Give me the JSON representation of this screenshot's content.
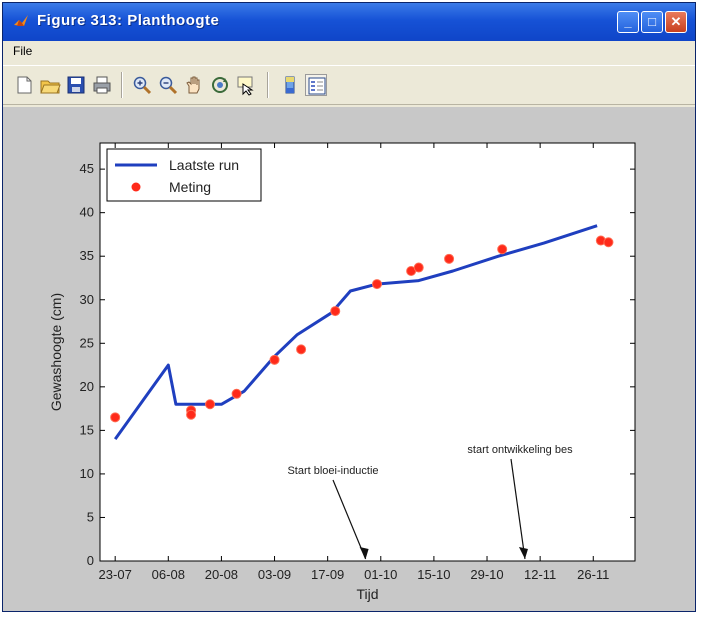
{
  "window": {
    "title": "Figure 313:  Planthoogte",
    "min_glyph": "_",
    "max_glyph": "□",
    "close_glyph": "✕"
  },
  "menu": {
    "file_label": "File"
  },
  "toolbar": {
    "icons": [
      "new-file-icon",
      "open-folder-icon",
      "save-icon",
      "print-icon",
      "zoom-in-icon",
      "zoom-out-icon",
      "pan-hand-icon",
      "rotate-3d-icon",
      "data-cursor-icon",
      "colorbar-icon",
      "legend-icon"
    ]
  },
  "colors": {
    "title_bar": "#1652d6",
    "figure_background": "#c8c8c8",
    "model_line": "#1f3fbf",
    "measurement_marker": "#ff2a1a"
  },
  "chart_data": {
    "type": "line",
    "title": "",
    "xlabel": "Tijd",
    "ylabel": "Gewashoogte (cm)",
    "x_tick_labels": [
      "23-07",
      "06-08",
      "20-08",
      "03-09",
      "17-09",
      "01-10",
      "15-10",
      "29-10",
      "12-11",
      "26-11"
    ],
    "x_unit": "day index (0 = 23-07)",
    "xlim": [
      -4,
      137
    ],
    "ylim": [
      0,
      48
    ],
    "y_ticks": [
      0,
      5,
      10,
      15,
      20,
      25,
      30,
      35,
      40,
      45
    ],
    "grid": false,
    "legend_position": "top-left",
    "series": [
      {
        "name": "Laatste run",
        "style": "line",
        "x": [
          0,
          14,
          16,
          20,
          28,
          34,
          42,
          48,
          57,
          62,
          69,
          80,
          89,
          101,
          113,
          127
        ],
        "y": [
          14,
          22.5,
          18,
          18,
          18,
          19.5,
          23.5,
          26,
          28.5,
          31,
          31.8,
          32.2,
          33.3,
          35,
          36.5,
          38.5
        ]
      },
      {
        "name": "Meting",
        "style": "marker",
        "x": [
          0,
          20,
          20,
          25,
          32,
          42,
          49,
          58,
          69,
          78,
          80,
          88,
          102,
          128,
          130
        ],
        "y": [
          16.5,
          17.3,
          16.8,
          18,
          19.2,
          23.1,
          24.3,
          28.7,
          31.8,
          33.3,
          33.7,
          34.7,
          35.8,
          36.8,
          36.6
        ]
      }
    ],
    "annotations": [
      {
        "text": "Start bloei-inductie",
        "x": 66,
        "y": 0
      },
      {
        "text": "start ontwikkeling bes",
        "x": 108,
        "y": 0
      }
    ]
  }
}
